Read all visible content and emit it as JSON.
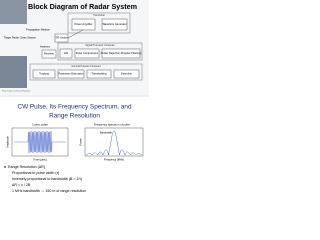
{
  "slide1": {
    "title": "Block Diagram of Radar System",
    "groups": [
      "Transmitter",
      "Signal Processor Computer",
      "General Purpose Computer"
    ],
    "nodes": [
      "Power Amplifier",
      "Waveform Generator",
      "T/R Switch",
      "Receiver",
      "A/D",
      "Pulse Compression",
      "Clutter Rejection (Doppler Filtering)",
      "Tracking",
      "Parameter Estimation",
      "Thresholding",
      "Detection"
    ],
    "labels": [
      "Propagation Medium",
      "Target Radar Cross Section",
      "Antenna",
      "Photo Image Courtesy of Raytheon"
    ]
  },
  "slide2": {
    "title": [
      "CW Pulse, Its Frequency Spectrum, and",
      "Range Resolution"
    ],
    "plots": [
      {
        "title": "1 μsec pulse",
        "xlabel": "Time (μsec)",
        "ylabel": "Amplitude"
      },
      {
        "title": "Frequency spectrum of pulse",
        "xlabel": "Frequency (MHz)",
        "ylabel": "Power",
        "annotation": "Bandwidth"
      }
    ],
    "bullets": [
      "Range Resolution (ΔR)",
      "Proportional to pulse width (τ)",
      "Inversely proportional to bandwidth (B = 1/τ)",
      "ΔR = c / 2B",
      "1 MHz bandwidth ⇔ 150 m of range resolution"
    ]
  }
}
